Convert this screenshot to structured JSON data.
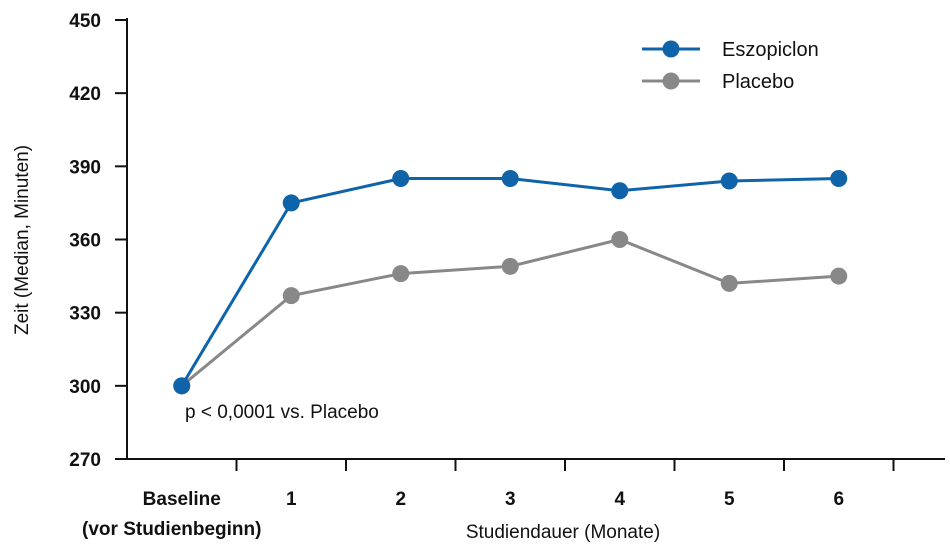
{
  "chart_data": {
    "type": "line",
    "categories": [
      "Baseline",
      "1",
      "2",
      "3",
      "4",
      "5",
      "6"
    ],
    "baseline_sublabel": "(vor Studienbeginn)",
    "series": [
      {
        "name": "Eszopiclon",
        "color": "#0f63a8",
        "values": [
          300,
          375,
          385,
          385,
          380,
          384,
          385
        ]
      },
      {
        "name": "Placebo",
        "color": "#888888",
        "values": [
          300,
          337,
          346,
          349,
          360,
          342,
          345
        ]
      }
    ],
    "xlabel": "Studiendauer (Monate)",
    "ylabel": "Zeit (Median, Minuten)",
    "ylim": [
      270,
      450
    ],
    "yticks": [
      270,
      300,
      330,
      360,
      390,
      420,
      450
    ],
    "annotation": "p < 0,0001 vs. Placebo",
    "legend_position": "top-right",
    "grid": false
  }
}
